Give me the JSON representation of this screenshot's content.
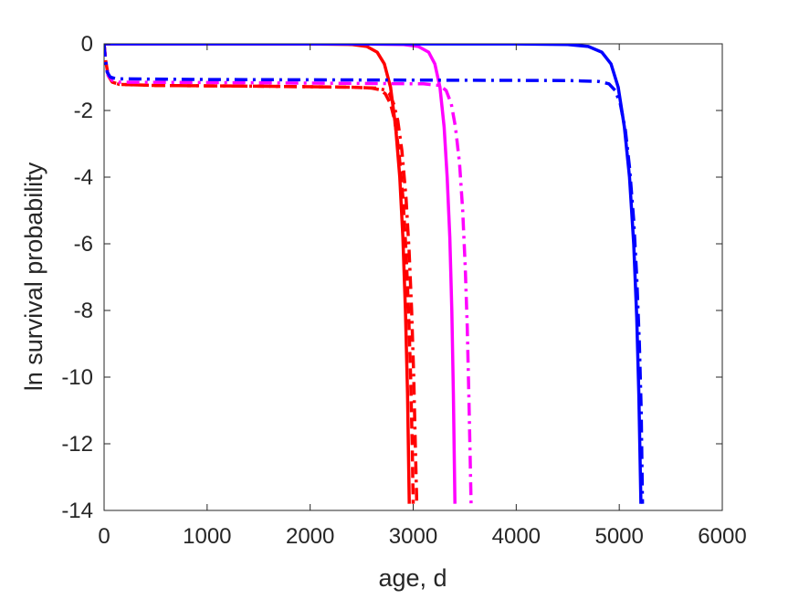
{
  "chart_data": {
    "type": "line",
    "xlabel": "age, d",
    "ylabel": "ln survival probability",
    "xlim": [
      0,
      6000
    ],
    "ylim": [
      -14,
      0
    ],
    "xticks": [
      0,
      1000,
      2000,
      3000,
      4000,
      5000,
      6000
    ],
    "yticks": [
      0,
      -2,
      -4,
      -6,
      -8,
      -10,
      -12,
      -14
    ],
    "grid": false,
    "legend": "none",
    "series": [
      {
        "color": "#ff0000",
        "style": "solid",
        "points": [
          [
            0,
            0
          ],
          [
            2000,
            -0.002
          ],
          [
            2400,
            -0.02
          ],
          [
            2550,
            -0.08
          ],
          [
            2650,
            -0.25
          ],
          [
            2720,
            -0.6
          ],
          [
            2780,
            -1.3
          ],
          [
            2830,
            -2.5
          ],
          [
            2870,
            -4
          ],
          [
            2900,
            -5.8
          ],
          [
            2925,
            -8
          ],
          [
            2945,
            -10.5
          ],
          [
            2962,
            -13.8
          ]
        ]
      },
      {
        "color": "#ff0000",
        "style": "dashed",
        "points": [
          [
            0,
            0
          ],
          [
            15,
            -0.5
          ],
          [
            40,
            -0.95
          ],
          [
            80,
            -1.15
          ],
          [
            150,
            -1.22
          ],
          [
            500,
            -1.25
          ],
          [
            1500,
            -1.27
          ],
          [
            2400,
            -1.3
          ],
          [
            2600,
            -1.33
          ],
          [
            2680,
            -1.38
          ],
          [
            2730,
            -1.5
          ],
          [
            2780,
            -1.8
          ],
          [
            2820,
            -2.3
          ],
          [
            2860,
            -3.2
          ],
          [
            2900,
            -4.6
          ],
          [
            2930,
            -6.2
          ],
          [
            2955,
            -8
          ],
          [
            2975,
            -10
          ],
          [
            2990,
            -12
          ],
          [
            3000,
            -13.8
          ]
        ]
      },
      {
        "color": "#ff0000",
        "style": "dashdot",
        "points": [
          [
            0,
            0
          ],
          [
            15,
            -0.5
          ],
          [
            40,
            -0.95
          ],
          [
            80,
            -1.15
          ],
          [
            150,
            -1.22
          ],
          [
            500,
            -1.25
          ],
          [
            1500,
            -1.27
          ],
          [
            2400,
            -1.3
          ],
          [
            2650,
            -1.33
          ],
          [
            2720,
            -1.38
          ],
          [
            2770,
            -1.5
          ],
          [
            2810,
            -1.8
          ],
          [
            2850,
            -2.3
          ],
          [
            2890,
            -3.2
          ],
          [
            2930,
            -4.6
          ],
          [
            2960,
            -6.2
          ],
          [
            2985,
            -8
          ],
          [
            3005,
            -10
          ],
          [
            3020,
            -12
          ],
          [
            3035,
            -13.8
          ]
        ]
      },
      {
        "color": "#ff00ff",
        "style": "solid",
        "points": [
          [
            0,
            0
          ],
          [
            2500,
            -0.002
          ],
          [
            2900,
            -0.02
          ],
          [
            3050,
            -0.08
          ],
          [
            3150,
            -0.25
          ],
          [
            3210,
            -0.6
          ],
          [
            3260,
            -1.3
          ],
          [
            3300,
            -2.5
          ],
          [
            3330,
            -4
          ],
          [
            3355,
            -5.8
          ],
          [
            3375,
            -8
          ],
          [
            3390,
            -10.5
          ],
          [
            3405,
            -13.8
          ]
        ]
      },
      {
        "color": "#ff00ff",
        "style": "dashdot",
        "points": [
          [
            0,
            0
          ],
          [
            15,
            -0.5
          ],
          [
            40,
            -0.95
          ],
          [
            80,
            -1.1
          ],
          [
            150,
            -1.15
          ],
          [
            1500,
            -1.17
          ],
          [
            3100,
            -1.2
          ],
          [
            3260,
            -1.25
          ],
          [
            3320,
            -1.4
          ],
          [
            3370,
            -1.8
          ],
          [
            3410,
            -2.5
          ],
          [
            3450,
            -3.6
          ],
          [
            3480,
            -5
          ],
          [
            3505,
            -6.7
          ],
          [
            3525,
            -8.5
          ],
          [
            3540,
            -10.5
          ],
          [
            3552,
            -12.3
          ],
          [
            3562,
            -13.8
          ]
        ]
      },
      {
        "color": "#0000ff",
        "style": "solid",
        "points": [
          [
            0,
            0
          ],
          [
            4000,
            -0.002
          ],
          [
            4500,
            -0.02
          ],
          [
            4700,
            -0.08
          ],
          [
            4830,
            -0.25
          ],
          [
            4920,
            -0.6
          ],
          [
            4990,
            -1.3
          ],
          [
            5050,
            -2.5
          ],
          [
            5100,
            -4
          ],
          [
            5140,
            -6
          ],
          [
            5170,
            -8.2
          ],
          [
            5190,
            -10.5
          ],
          [
            5210,
            -13.8
          ]
        ]
      },
      {
        "color": "#0000ff",
        "style": "dashdot",
        "points": [
          [
            0,
            0
          ],
          [
            10,
            -0.4
          ],
          [
            30,
            -0.85
          ],
          [
            60,
            -1
          ],
          [
            120,
            -1.05
          ],
          [
            1000,
            -1.07
          ],
          [
            4500,
            -1.1
          ],
          [
            4800,
            -1.13
          ],
          [
            4900,
            -1.2
          ],
          [
            4960,
            -1.4
          ],
          [
            5010,
            -1.8
          ],
          [
            5060,
            -2.6
          ],
          [
            5100,
            -3.7
          ],
          [
            5140,
            -5.3
          ],
          [
            5170,
            -7
          ],
          [
            5195,
            -9
          ],
          [
            5213,
            -11
          ],
          [
            5225,
            -13.8
          ]
        ]
      }
    ]
  }
}
